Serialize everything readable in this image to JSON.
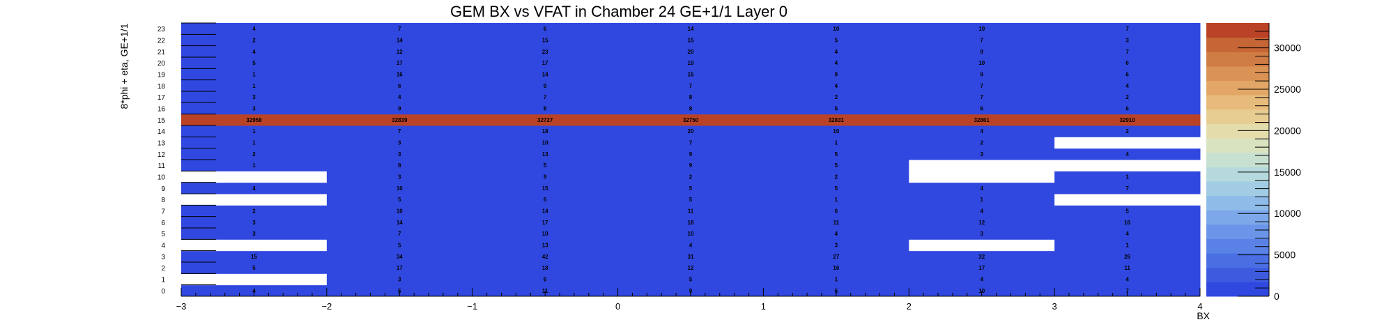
{
  "chart_data": {
    "type": "heatmap",
    "title": "GEM BX vs VFAT in Chamber 24 GE+1/1 Layer 0",
    "xlabel": "BX",
    "ylabel": "8*phi + eta, GE+1/1",
    "xlim": [
      -3,
      4
    ],
    "ylim": [
      0,
      24
    ],
    "x_ticks": [
      "−3",
      "−2",
      "−1",
      "0",
      "1",
      "2",
      "3",
      "4"
    ],
    "y_labels": [
      "0",
      "1",
      "2",
      "3",
      "4",
      "5",
      "6",
      "7",
      "8",
      "9",
      "10",
      "11",
      "12",
      "13",
      "14",
      "15",
      "16",
      "17",
      "18",
      "19",
      "20",
      "21",
      "22",
      "23"
    ],
    "x_bins": [
      -3,
      -2,
      -1,
      0,
      1,
      2,
      3
    ],
    "colorbar": {
      "min": 0,
      "max": 33000,
      "tick_values": [
        0,
        5000,
        10000,
        15000,
        20000,
        25000,
        30000
      ],
      "tick_labels": [
        "0",
        "5000",
        "10000",
        "15000",
        "20000",
        "25000",
        "30000"
      ]
    },
    "colors": {
      "low": "#3048e0",
      "high": "#ba4226",
      "empty": "#ffffff"
    },
    "palette": [
      "#3048e0",
      "#3e5be0",
      "#4a6fe3",
      "#5a82e6",
      "#6b95e9",
      "#7ca8ea",
      "#8fbbe8",
      "#a2cce4",
      "#b5d9dc",
      "#c8e0d0",
      "#d9e3bf",
      "#e4dcaa",
      "#e8cd92",
      "#e7bb7b",
      "#e2a766",
      "#da9255",
      "#d07c45",
      "#c66535",
      "#ba4226"
    ],
    "values": [
      [
        4,
        5,
        11,
        9,
        5,
        10,
        7
      ],
      [
        null,
        3,
        6,
        5,
        1,
        4,
        4
      ],
      [
        5,
        17,
        18,
        12,
        16,
        17,
        11
      ],
      [
        15,
        34,
        42,
        31,
        27,
        32,
        26
      ],
      [
        null,
        5,
        13,
        4,
        3,
        null,
        1
      ],
      [
        3,
        7,
        10,
        10,
        4,
        3,
        4
      ],
      [
        3,
        14,
        17,
        18,
        11,
        12,
        16
      ],
      [
        2,
        10,
        14,
        11,
        6,
        4,
        5
      ],
      [
        null,
        5,
        6,
        5,
        1,
        1,
        null
      ],
      [
        4,
        10,
        15,
        5,
        5,
        4,
        7
      ],
      [
        null,
        3,
        9,
        2,
        2,
        null,
        1
      ],
      [
        1,
        8,
        5,
        9,
        5,
        null,
        null
      ],
      [
        2,
        3,
        13,
        9,
        5,
        3,
        4
      ],
      [
        1,
        3,
        10,
        7,
        1,
        2,
        null
      ],
      [
        1,
        7,
        18,
        20,
        10,
        4,
        2
      ],
      [
        32958,
        32839,
        32727,
        32750,
        32831,
        32861,
        32910
      ],
      [
        3,
        9,
        8,
        8,
        5,
        6,
        6
      ],
      [
        3,
        4,
        7,
        8,
        2,
        7,
        2
      ],
      [
        1,
        6,
        9,
        7,
        4,
        7,
        4
      ],
      [
        1,
        16,
        14,
        15,
        9,
        9,
        6
      ],
      [
        5,
        17,
        17,
        19,
        4,
        10,
        6
      ],
      [
        4,
        12,
        23,
        20,
        4,
        9,
        7
      ],
      [
        2,
        14,
        15,
        15,
        5,
        7,
        3
      ],
      [
        4,
        7,
        6,
        14,
        10,
        10,
        7
      ]
    ]
  }
}
